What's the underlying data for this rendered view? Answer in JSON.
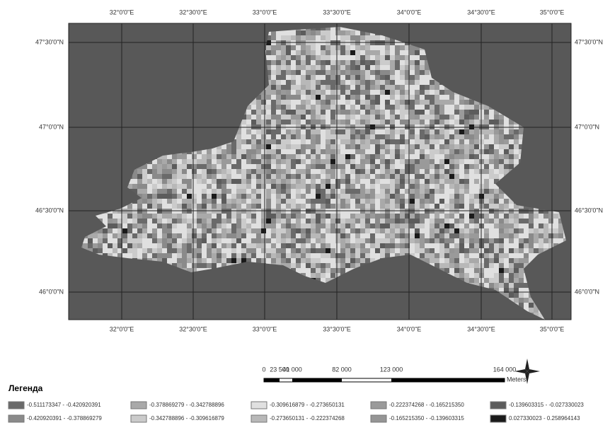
{
  "map": {
    "longitude_labels": [
      "32°0'0\"E",
      "32°30'0\"E",
      "33°0'0\"E",
      "33°30'0\"E",
      "34°0'0\"E",
      "34°30'0\"E",
      "35°0'0\"E"
    ],
    "latitude_labels": [
      "47°30'0\"N",
      "47°0'0\"N",
      "46°30'0\"N",
      "46°0'0\"N"
    ],
    "scale_bar": {
      "labels": [
        "0",
        "23 500",
        "41 000",
        "82 000",
        "123 000",
        "164 000"
      ],
      "unit": "Meters"
    },
    "legend": {
      "title": "Легенда",
      "items": [
        {
          "label": "-0.511173347 - -0.420920391",
          "color": "#6a6a6a"
        },
        {
          "label": "-0.378869279 - -0.342788896",
          "color": "#a9a9a9"
        },
        {
          "label": "-0.309616879 - -0.273650131",
          "color": "#e0e0e0"
        },
        {
          "label": "-0.222374268 - -0.165215350",
          "color": "#9a9a9a"
        },
        {
          "label": "-0.139603315 - -0.027330023",
          "color": "#5c5c5c"
        },
        {
          "label": "-0.420920391 - -0.378869279",
          "color": "#8a8a8a"
        },
        {
          "label": "-0.342788896 - -0.309616879",
          "color": "#cbcbcb"
        },
        {
          "label": "-0.273650131 - -0.222374268",
          "color": "#b8b8b8"
        },
        {
          "label": "-0.165215350 - -0.139603315",
          "color": "#959595"
        },
        {
          "label": "0.027330023 - 0.258964143",
          "color": "#1a1a1a"
        }
      ]
    }
  }
}
